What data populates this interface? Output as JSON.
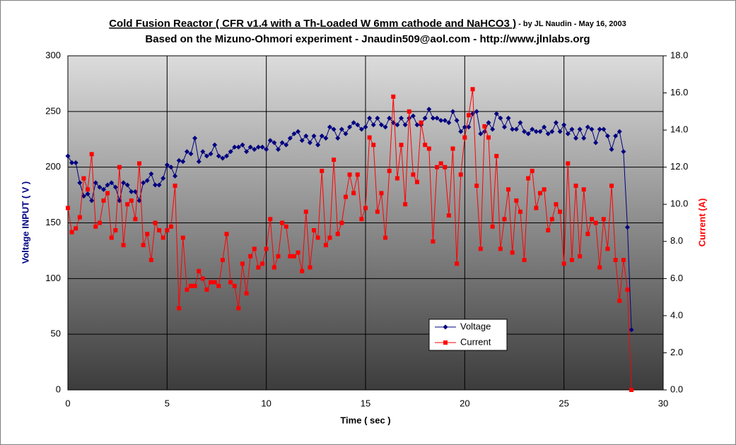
{
  "chart_data": {
    "type": "line",
    "title": "Cold Fusion Reactor ( CFR v1.4 with a Th-Loaded W 6mm cathode and NaHCO3 )",
    "byline": " - by JL Naudin - May 16, 2003",
    "subtitle": "Based on the Mizuno-Ohmori experiment - Jnaudin509@aol.com - http://www.jlnlabs.org",
    "xlabel": "Time ( sec )",
    "ylabel": "Voltage INPUT ( V )",
    "y2label": "Current (A)",
    "xlim": [
      0,
      30
    ],
    "xticks": [
      0,
      5,
      10,
      15,
      20,
      25,
      30
    ],
    "ylim": [
      0,
      300
    ],
    "yticks": [
      0,
      50,
      100,
      150,
      200,
      250,
      300
    ],
    "y2lim": [
      0,
      18
    ],
    "y2ticks": [
      {
        "value": 0,
        "label": "0.0"
      },
      {
        "value": 2,
        "label": "2.0"
      },
      {
        "value": 4,
        "label": "4.0"
      },
      {
        "value": 6,
        "label": "6.0"
      },
      {
        "value": 8,
        "label": "8.0"
      },
      {
        "value": 10,
        "label": "10.0"
      },
      {
        "value": 12,
        "label": "12.0"
      },
      {
        "value": 14,
        "label": "14.0"
      },
      {
        "value": 16,
        "label": "16.0"
      },
      {
        "value": 18,
        "label": "18.0"
      }
    ],
    "grid": true,
    "legend": "lower-right",
    "x": [
      0,
      0.2,
      0.4,
      0.6,
      0.8,
      1,
      1.2,
      1.4,
      1.6,
      1.8,
      2,
      2.2,
      2.4,
      2.6,
      2.8,
      3,
      3.2,
      3.4,
      3.6,
      3.8,
      4,
      4.2,
      4.4,
      4.6,
      4.8,
      5,
      5.2,
      5.4,
      5.6,
      5.8,
      6,
      6.2,
      6.4,
      6.6,
      6.8,
      7,
      7.2,
      7.4,
      7.6,
      7.8,
      8,
      8.2,
      8.4,
      8.6,
      8.8,
      9,
      9.2,
      9.4,
      9.6,
      9.8,
      10,
      10.2,
      10.4,
      10.6,
      10.8,
      11,
      11.2,
      11.4,
      11.6,
      11.8,
      12,
      12.2,
      12.4,
      12.6,
      12.8,
      13,
      13.2,
      13.4,
      13.6,
      13.8,
      14,
      14.2,
      14.4,
      14.6,
      14.8,
      15,
      15.2,
      15.4,
      15.6,
      15.8,
      16,
      16.2,
      16.4,
      16.6,
      16.8,
      17,
      17.2,
      17.4,
      17.6,
      17.8,
      18,
      18.2,
      18.4,
      18.6,
      18.8,
      19,
      19.2,
      19.4,
      19.6,
      19.8,
      20,
      20.2,
      20.4,
      20.6,
      20.8,
      21,
      21.2,
      21.4,
      21.6,
      21.8,
      22,
      22.2,
      22.4,
      22.6,
      22.8,
      23,
      23.2,
      23.4,
      23.6,
      23.8,
      24,
      24.2,
      24.4,
      24.6,
      24.8,
      25,
      25.2,
      25.4,
      25.6,
      25.8,
      26,
      26.2,
      26.4,
      26.6,
      26.8,
      27,
      27.2,
      27.4,
      27.6,
      27.8,
      28,
      28.2,
      28.4
    ],
    "series": [
      {
        "name": "Voltage",
        "color": "#000080",
        "marker": "diamond",
        "values": [
          210,
          204,
          204,
          186,
          174,
          176,
          170,
          186,
          182,
          180,
          184,
          186,
          182,
          170,
          186,
          184,
          178,
          178,
          170,
          186,
          188,
          194,
          184,
          184,
          190,
          202,
          200,
          192,
          206,
          205,
          214,
          212,
          226,
          205,
          214,
          210,
          212,
          220,
          210,
          208,
          210,
          214,
          218,
          218,
          220,
          214,
          218,
          216,
          218,
          218,
          216,
          224,
          222,
          216,
          222,
          220,
          226,
          230,
          232,
          224,
          228,
          222,
          228,
          220,
          228,
          226,
          236,
          234,
          226,
          234,
          230,
          236,
          240,
          238,
          234,
          236,
          244,
          238,
          244,
          238,
          236,
          244,
          240,
          238,
          244,
          238,
          244,
          246,
          238,
          238,
          244,
          252,
          244,
          244,
          242,
          242,
          240,
          250,
          242,
          232,
          236,
          236,
          248,
          250,
          230,
          232,
          240,
          234,
          248,
          244,
          236,
          244,
          234,
          234,
          240,
          232,
          230,
          234,
          232,
          232,
          236,
          230,
          232,
          240,
          232,
          238,
          230,
          234,
          226,
          234,
          226,
          236,
          234,
          222,
          234,
          234,
          228,
          216,
          228,
          232,
          214,
          146,
          54
        ]
      },
      {
        "name": "Current",
        "color": "#ff0000",
        "marker": "square",
        "axis": "y2",
        "values": [
          9.8,
          8.5,
          8.7,
          9.3,
          11.4,
          10.8,
          12.7,
          8.8,
          9.0,
          10.2,
          10.6,
          8.2,
          8.6,
          12.0,
          7.8,
          10.0,
          10.2,
          9.2,
          12.2,
          7.8,
          8.4,
          7.0,
          9.0,
          8.6,
          8.2,
          8.6,
          8.8,
          11.0,
          4.4,
          8.2,
          5.4,
          5.6,
          5.6,
          6.4,
          6.0,
          5.4,
          5.8,
          5.8,
          5.6,
          7.0,
          8.4,
          5.8,
          5.6,
          4.4,
          6.8,
          5.2,
          7.2,
          7.6,
          6.6,
          6.8,
          7.6,
          9.2,
          6.6,
          7.2,
          9.0,
          8.8,
          7.2,
          7.2,
          7.4,
          6.4,
          9.6,
          6.6,
          8.6,
          8.2,
          11.8,
          7.8,
          8.2,
          12.4,
          8.4,
          9.0,
          10.4,
          11.6,
          10.6,
          11.6,
          9.2,
          9.8,
          13.6,
          13.2,
          9.6,
          10.6,
          8.2,
          11.8,
          15.8,
          11.4,
          13.2,
          10.0,
          15.0,
          11.6,
          11.2,
          14.4,
          13.2,
          13.0,
          8.0,
          12.0,
          12.2,
          12.0,
          9.4,
          13.0,
          6.8,
          11.6,
          13.6,
          14.8,
          16.2,
          11.0,
          7.6,
          14.2,
          13.6,
          8.8,
          12.6,
          7.6,
          9.2,
          10.8,
          7.4,
          10.2,
          9.6,
          7.0,
          11.4,
          11.8,
          9.8,
          10.6,
          10.8,
          8.6,
          9.2,
          10.0,
          9.6,
          6.8,
          12.2,
          7.0,
          11.0,
          7.2,
          10.8,
          8.4,
          9.2,
          9.0,
          6.6,
          9.2,
          7.6,
          11.0,
          7.0,
          4.8,
          7.0,
          5.4,
          0.0
        ]
      }
    ]
  }
}
